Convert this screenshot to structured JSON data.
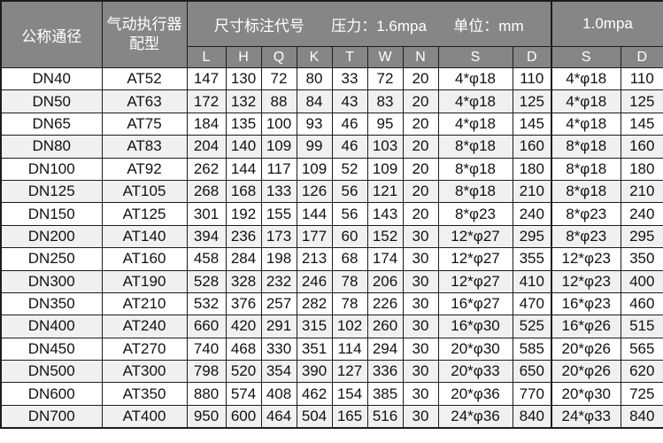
{
  "header": {
    "nominal_diameter": "公称通径",
    "actuator_line1": "气动执行器",
    "actuator_line2": "配型",
    "size_code_label": "尺寸标注代号",
    "pressure_label": "压力：1.6mpa",
    "unit_label": "单位：mm",
    "pressure2_label": "1.0mpa",
    "sub_columns": [
      "L",
      "H",
      "Q",
      "K",
      "T",
      "W",
      "N",
      "S",
      "D",
      "S",
      "D"
    ]
  },
  "rows": [
    [
      "DN40",
      "AT52",
      "147",
      "130",
      "72",
      "80",
      "33",
      "72",
      "20",
      "4*φ18",
      "110",
      "4*φ18",
      "110"
    ],
    [
      "DN50",
      "AT63",
      "172",
      "132",
      "88",
      "84",
      "43",
      "83",
      "20",
      "4*φ18",
      "125",
      "4*φ18",
      "125"
    ],
    [
      "DN65",
      "AT75",
      "184",
      "135",
      "100",
      "93",
      "46",
      "95",
      "20",
      "4*φ18",
      "145",
      "4*φ18",
      "145"
    ],
    [
      "DN80",
      "AT83",
      "204",
      "140",
      "109",
      "99",
      "46",
      "103",
      "20",
      "8*φ18",
      "160",
      "8*φ18",
      "160"
    ],
    [
      "DN100",
      "AT92",
      "262",
      "144",
      "117",
      "109",
      "52",
      "109",
      "20",
      "8*φ18",
      "180",
      "8*φ18",
      "180"
    ],
    [
      "DN125",
      "AT105",
      "268",
      "168",
      "133",
      "126",
      "56",
      "121",
      "20",
      "8*φ18",
      "210",
      "8*φ18",
      "210"
    ],
    [
      "DN150",
      "AT125",
      "301",
      "192",
      "155",
      "144",
      "56",
      "143",
      "20",
      "8*φ23",
      "240",
      "8*φ23",
      "240"
    ],
    [
      "DN200",
      "AT140",
      "394",
      "236",
      "173",
      "177",
      "60",
      "152",
      "30",
      "12*φ27",
      "295",
      "8*φ23",
      "295"
    ],
    [
      "DN250",
      "AT160",
      "458",
      "284",
      "198",
      "213",
      "68",
      "174",
      "30",
      "12*φ27",
      "355",
      "12*φ23",
      "350"
    ],
    [
      "DN300",
      "AT190",
      "528",
      "328",
      "232",
      "246",
      "78",
      "206",
      "30",
      "12*φ27",
      "410",
      "12*φ23",
      "400"
    ],
    [
      "DN350",
      "AT210",
      "532",
      "376",
      "257",
      "282",
      "78",
      "226",
      "30",
      "16*φ27",
      "470",
      "16*φ23",
      "460"
    ],
    [
      "DN400",
      "AT240",
      "660",
      "420",
      "291",
      "315",
      "102",
      "260",
      "30",
      "16*φ30",
      "525",
      "16*φ26",
      "515"
    ],
    [
      "DN450",
      "AT270",
      "740",
      "468",
      "330",
      "351",
      "114",
      "294",
      "30",
      "20*φ30",
      "585",
      "20*φ26",
      "565"
    ],
    [
      "DN500",
      "AT300",
      "798",
      "520",
      "354",
      "390",
      "127",
      "336",
      "30",
      "20*φ33",
      "650",
      "20*φ26",
      "620"
    ],
    [
      "DN600",
      "AT350",
      "880",
      "574",
      "408",
      "462",
      "154",
      "385",
      "30",
      "20*φ36",
      "770",
      "20*φ30",
      "725"
    ],
    [
      "DN700",
      "AT400",
      "950",
      "600",
      "464",
      "504",
      "165",
      "516",
      "30",
      "24*φ36",
      "840",
      "24*φ33",
      "840"
    ]
  ],
  "colors": {
    "header_bg": "#868686",
    "header_text": "#ffffff",
    "row_alt": "#f0f0f0",
    "row_bg": "#ffffff",
    "border": "#1c1c1c",
    "cell_text": "#111111"
  }
}
